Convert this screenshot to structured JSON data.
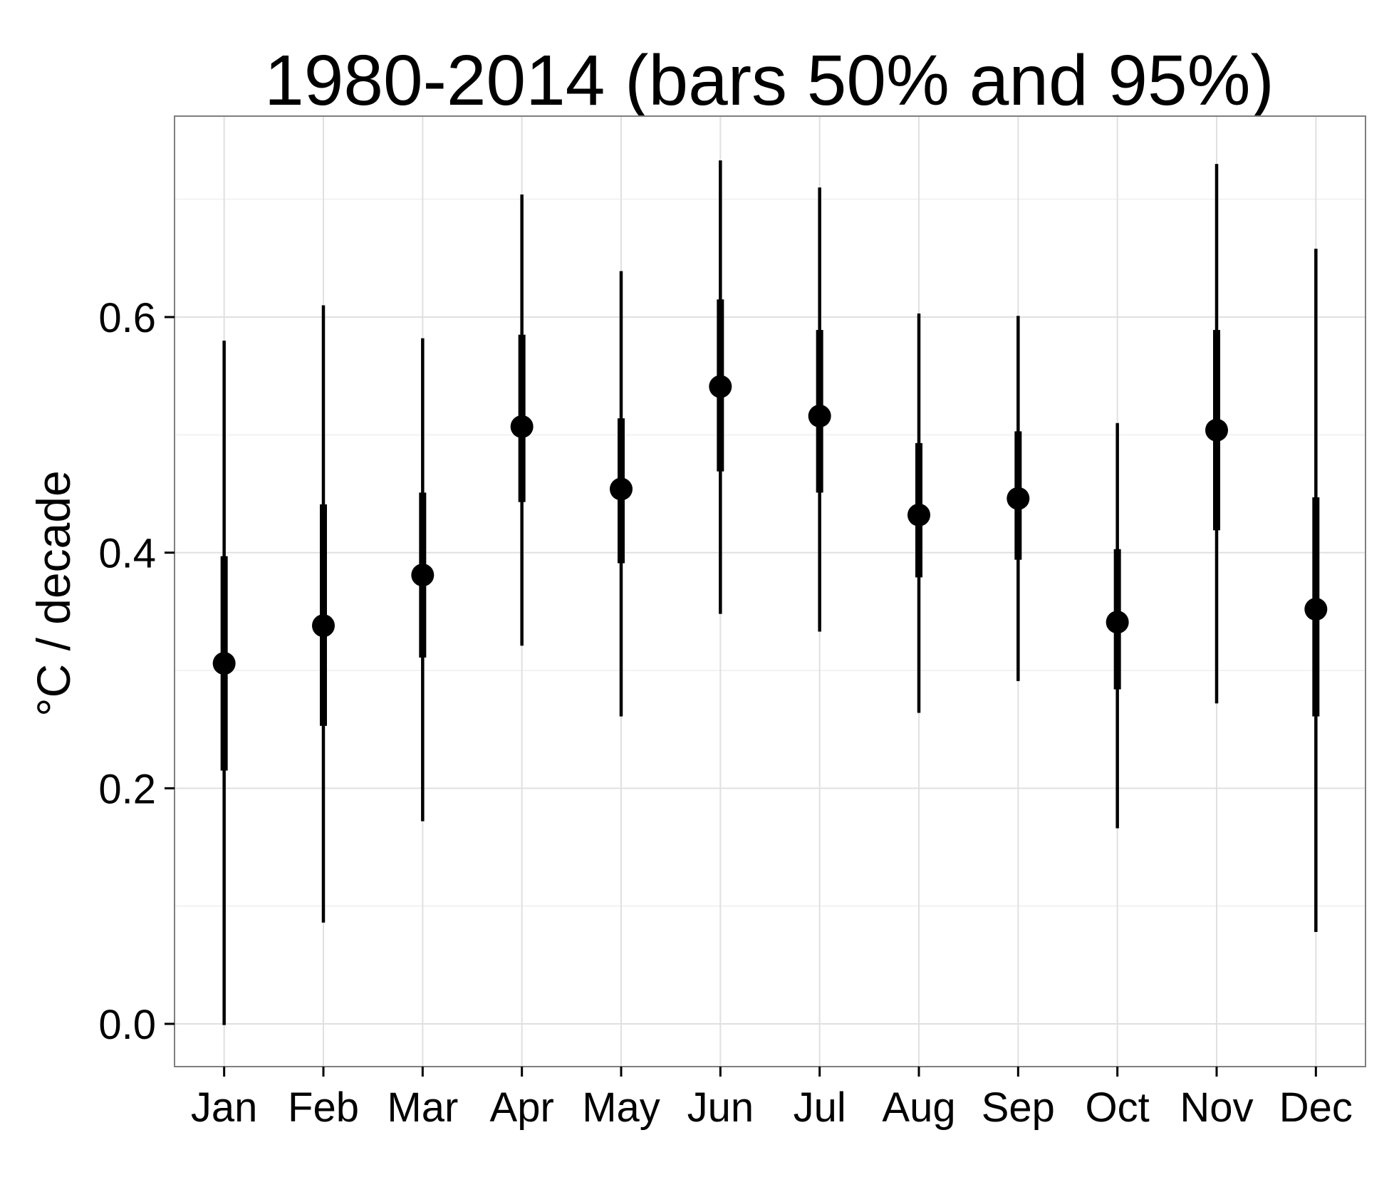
{
  "chart_data": {
    "type": "point-range",
    "title": "1980-2014 (bars 50% and 95%)",
    "xlabel": "",
    "ylabel": "°C / decade",
    "categories": [
      "Jan",
      "Feb",
      "Mar",
      "Apr",
      "May",
      "Jun",
      "Jul",
      "Aug",
      "Sep",
      "Oct",
      "Nov",
      "Dec"
    ],
    "estimate": [
      0.306,
      0.338,
      0.381,
      0.507,
      0.454,
      0.541,
      0.516,
      0.432,
      0.446,
      0.341,
      0.504,
      0.352
    ],
    "interval_50": [
      [
        0.215,
        0.397
      ],
      [
        0.253,
        0.441
      ],
      [
        0.311,
        0.451
      ],
      [
        0.443,
        0.585
      ],
      [
        0.391,
        0.514
      ],
      [
        0.469,
        0.615
      ],
      [
        0.451,
        0.589
      ],
      [
        0.379,
        0.493
      ],
      [
        0.394,
        0.503
      ],
      [
        0.284,
        0.403
      ],
      [
        0.419,
        0.589
      ],
      [
        0.261,
        0.447
      ]
    ],
    "interval_95": [
      [
        -0.001,
        0.58
      ],
      [
        0.086,
        0.61
      ],
      [
        0.172,
        0.582
      ],
      [
        0.321,
        0.704
      ],
      [
        0.261,
        0.639
      ],
      [
        0.348,
        0.733
      ],
      [
        0.333,
        0.71
      ],
      [
        0.264,
        0.603
      ],
      [
        0.291,
        0.601
      ],
      [
        0.166,
        0.51
      ],
      [
        0.272,
        0.73
      ],
      [
        0.078,
        0.658
      ]
    ],
    "yticks": [
      "0.0",
      "0.2",
      "0.4",
      "0.6"
    ],
    "ylim": [
      -0.037,
      0.77
    ],
    "grid": true,
    "legend": "none",
    "colors": {
      "marks": "#000000",
      "panel": "#ffffff",
      "grid_major": "#e0e0e0",
      "grid_minor": "#f2f2f2",
      "border": "#7f7f7f"
    }
  }
}
